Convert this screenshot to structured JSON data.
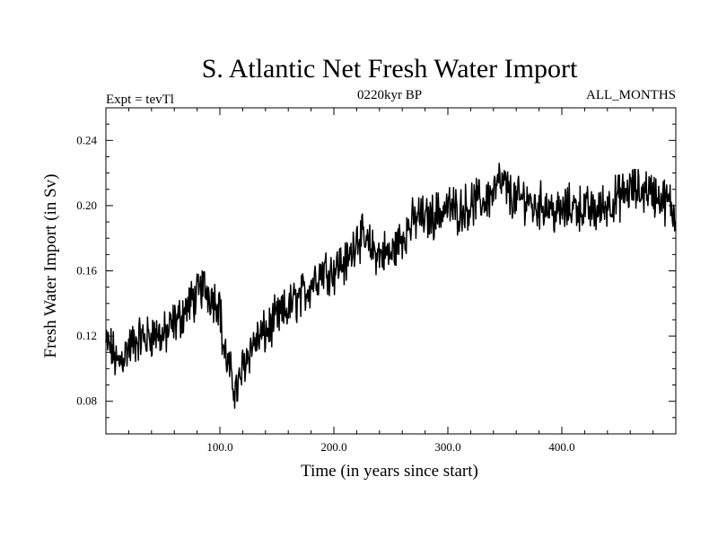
{
  "chart_data": {
    "type": "line",
    "title": "S. Atlantic Net Fresh Water Import",
    "subtitle_left": "Expt = tevTl",
    "subtitle_center": "0220kyr BP",
    "subtitle_right": "ALL_MONTHS",
    "xlabel": "Time (in years since start)",
    "ylabel": "Fresh Water Import (in Sv)",
    "xlim": [
      0,
      500
    ],
    "ylim": [
      0.06,
      0.26
    ],
    "xticks_major": [
      100,
      200,
      300,
      400
    ],
    "xtick_labels": [
      "100.0",
      "200.0",
      "300.0",
      "400.0"
    ],
    "yticks_major": [
      0.08,
      0.12,
      0.16,
      0.2,
      0.24
    ],
    "ytick_labels": [
      "0.08",
      "0.12",
      "0.16",
      "0.20",
      "0.24"
    ],
    "grid": false,
    "line_color": "#000000",
    "series": [
      {
        "x": [
          0,
          5,
          10,
          15,
          20,
          25,
          30,
          35,
          40,
          45,
          50,
          55,
          60,
          65,
          70,
          75,
          80,
          85,
          90,
          95,
          100,
          102,
          105,
          108,
          110,
          113,
          115,
          118,
          120,
          125,
          130,
          135,
          140,
          145,
          150,
          155,
          160,
          165,
          170,
          175,
          180,
          185,
          190,
          195,
          200,
          205,
          210,
          215,
          220,
          225,
          230,
          235,
          240,
          245,
          250,
          255,
          260,
          265,
          270,
          275,
          280,
          285,
          290,
          295,
          300,
          305,
          310,
          315,
          320,
          325,
          330,
          335,
          340,
          345,
          350,
          355,
          360,
          365,
          370,
          375,
          380,
          385,
          390,
          395,
          400,
          405,
          410,
          415,
          420,
          425,
          430,
          435,
          440,
          445,
          450,
          455,
          460,
          465,
          470,
          475,
          480,
          485,
          490,
          495,
          500
        ],
        "y": [
          0.115,
          0.112,
          0.102,
          0.108,
          0.113,
          0.116,
          0.119,
          0.118,
          0.121,
          0.122,
          0.119,
          0.123,
          0.128,
          0.131,
          0.137,
          0.141,
          0.144,
          0.151,
          0.147,
          0.143,
          0.141,
          0.118,
          0.108,
          0.1,
          0.094,
          0.089,
          0.087,
          0.093,
          0.101,
          0.11,
          0.116,
          0.119,
          0.122,
          0.126,
          0.131,
          0.133,
          0.137,
          0.141,
          0.143,
          0.147,
          0.152,
          0.157,
          0.161,
          0.161,
          0.16,
          0.165,
          0.164,
          0.17,
          0.183,
          0.179,
          0.175,
          0.173,
          0.17,
          0.171,
          0.169,
          0.176,
          0.181,
          0.186,
          0.19,
          0.194,
          0.191,
          0.193,
          0.195,
          0.197,
          0.199,
          0.198,
          0.197,
          0.199,
          0.2,
          0.203,
          0.202,
          0.205,
          0.208,
          0.214,
          0.212,
          0.206,
          0.203,
          0.204,
          0.205,
          0.198,
          0.2,
          0.201,
          0.199,
          0.195,
          0.196,
          0.198,
          0.2,
          0.199,
          0.198,
          0.197,
          0.196,
          0.199,
          0.201,
          0.203,
          0.205,
          0.207,
          0.21,
          0.209,
          0.208,
          0.211,
          0.207,
          0.206,
          0.203,
          0.201,
          0.192
        ]
      }
    ]
  }
}
